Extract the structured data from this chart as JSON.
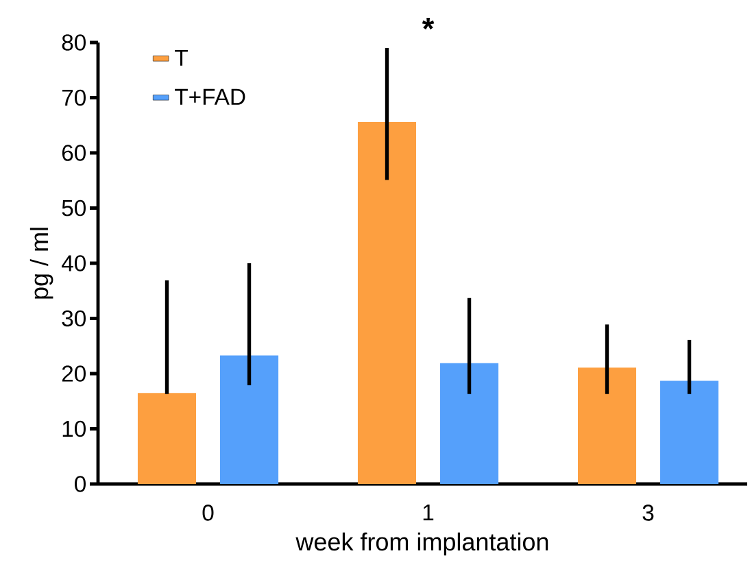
{
  "chart_data": {
    "type": "bar",
    "xlabel": "week from implantation",
    "ylabel": "pg / ml",
    "categories": [
      "0",
      "1",
      "3"
    ],
    "series": [
      {
        "name": "T",
        "color": "#fd9f40",
        "values": [
          16.5,
          65.6,
          21.1
        ],
        "errors": [
          [
            16.3,
            36.9
          ],
          [
            55.1,
            79
          ],
          [
            16.3,
            28.9
          ]
        ]
      },
      {
        "name": "T+FAD",
        "color": "#55a0fb",
        "values": [
          23.3,
          21.9,
          18.7
        ],
        "errors": [
          [
            17.9,
            40
          ],
          [
            16.3,
            33.7
          ],
          [
            16.3,
            26.1
          ]
        ]
      }
    ],
    "ylim": [
      0,
      80
    ],
    "yticks": [
      0,
      10,
      20,
      30,
      40,
      50,
      60,
      70,
      80
    ],
    "legend": "top left",
    "grid": false,
    "annotations": [
      "*"
    ]
  }
}
